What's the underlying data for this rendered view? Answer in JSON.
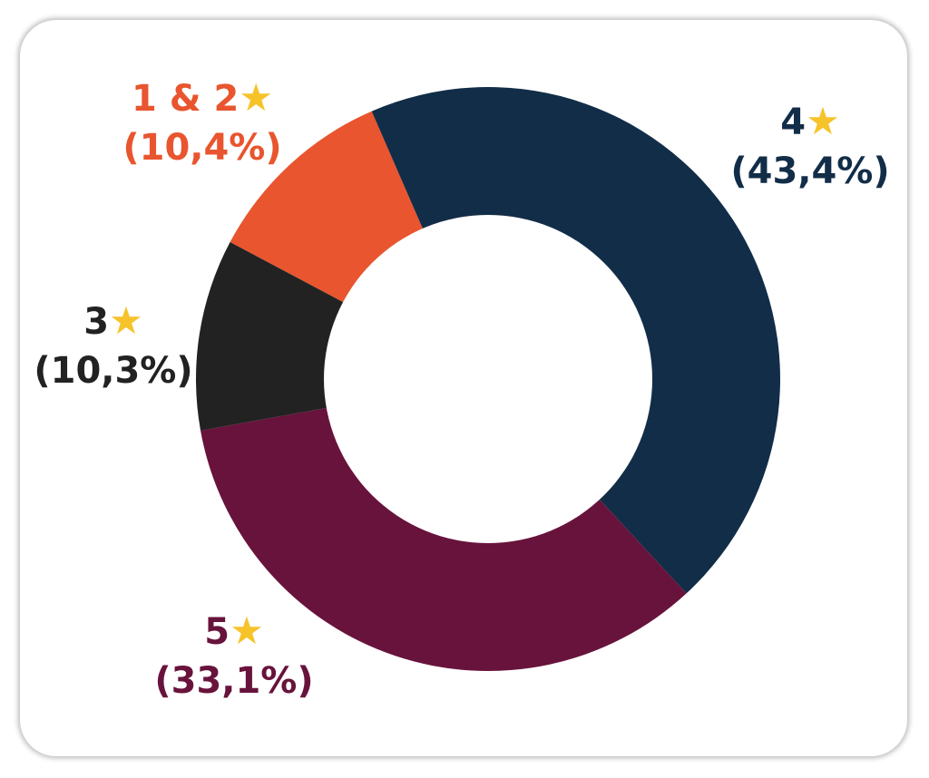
{
  "chart_data": {
    "type": "pie",
    "donut": true,
    "slices": [
      {
        "label": "4",
        "display_label": "4",
        "value": 43.4,
        "pct_text": "(43,4%)",
        "color": "#122d48"
      },
      {
        "label": "5",
        "display_label": "5",
        "value": 33.1,
        "pct_text": "(33,1%)",
        "color": "#68133c"
      },
      {
        "label": "3",
        "display_label": "3",
        "value": 10.3,
        "pct_text": "(10,3%)",
        "color": "#222222"
      },
      {
        "label": "1 & 2",
        "display_label": "1 & 2",
        "value": 10.4,
        "pct_text": "(10,4%)",
        "color": "#e8552e"
      }
    ],
    "star_symbol": "★",
    "star_color": "#f6c32b",
    "start_angle_deg": -23.5,
    "direction": "clockwise"
  }
}
